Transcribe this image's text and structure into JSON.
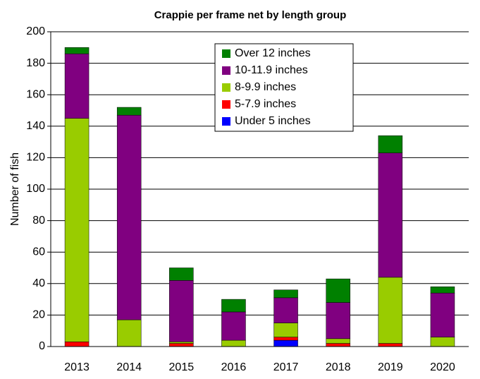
{
  "chart_data": {
    "type": "stacked_bar",
    "title": "Crappie per frame net by length group",
    "y_label": "Number of fish",
    "categories": [
      "2013",
      "2014",
      "2015",
      "2016",
      "2017",
      "2018",
      "2019",
      "2020"
    ],
    "series": [
      {
        "name": "Under 5 inches",
        "color": "#0000ff",
        "values": [
          0,
          0,
          0,
          0,
          4,
          0,
          0,
          0
        ]
      },
      {
        "name": "5-7.9 inches",
        "color": "#ff0000",
        "values": [
          3,
          0,
          2,
          0,
          2,
          2,
          2,
          0
        ]
      },
      {
        "name": "8-9.9 inches",
        "color": "#99cc00",
        "values": [
          142,
          17,
          1,
          4,
          9,
          3,
          42,
          6
        ]
      },
      {
        "name": "10-11.9 inches",
        "color": "#800080",
        "values": [
          41,
          130,
          39,
          18,
          16,
          23,
          79,
          28
        ]
      },
      {
        "name": "Over 12 inches",
        "color": "#008000",
        "values": [
          4,
          5,
          8,
          8,
          5,
          15,
          11,
          4
        ]
      }
    ],
    "ylim": [
      0,
      200
    ],
    "yticks": [
      0,
      20,
      40,
      60,
      80,
      100,
      120,
      140,
      160,
      180,
      200
    ],
    "grid": true
  }
}
